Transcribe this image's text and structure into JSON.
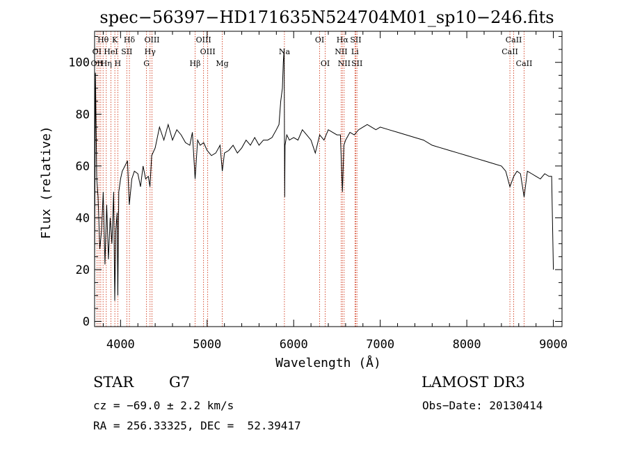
{
  "colors": {
    "background": "#ffffff",
    "axes": "#000000",
    "spectrum": "#000000",
    "line_markers": "#cc2200"
  },
  "chart_data": {
    "type": "line",
    "title": "spec−56397−HD171635N524704M01_sp10−246.fits",
    "xlabel": "Wavelength (Å)",
    "ylabel": "Flux (relative)",
    "xlim": [
      3700,
      9100
    ],
    "ylim": [
      -2,
      112
    ],
    "xticks": [
      4000,
      5000,
      6000,
      7000,
      8000,
      9000
    ],
    "xtick_labels": [
      "4000",
      "5000",
      "6000",
      "7000",
      "8000",
      "9000"
    ],
    "yticks": [
      0,
      20,
      40,
      60,
      80,
      100
    ],
    "ytick_labels": [
      "0",
      "20",
      "40",
      "60",
      "80",
      "100"
    ],
    "grid": false,
    "legend": "none",
    "series": [
      {
        "x": [
          3700,
          3710,
          3725,
          3740,
          3760,
          3780,
          3800,
          3820,
          3840,
          3860,
          3880,
          3900,
          3920,
          3933,
          3945,
          3960,
          3968,
          3980,
          4000,
          4020,
          4050,
          4080,
          4101,
          4130,
          4160,
          4200,
          4230,
          4260,
          4290,
          4320,
          4340,
          4360,
          4400,
          4450,
          4500,
          4550,
          4600,
          4650,
          4700,
          4750,
          4800,
          4830,
          4861,
          4890,
          4920,
          4960,
          5000,
          5050,
          5100,
          5150,
          5175,
          5200,
          5250,
          5300,
          5350,
          5400,
          5450,
          5500,
          5550,
          5600,
          5650,
          5700,
          5750,
          5800,
          5830,
          5850,
          5870,
          5880,
          5890,
          5896,
          5900,
          5920,
          5950,
          6000,
          6050,
          6100,
          6150,
          6200,
          6250,
          6300,
          6350,
          6400,
          6450,
          6500,
          6540,
          6563,
          6580,
          6600,
          6650,
          6700,
          6750,
          6800,
          6850,
          6900,
          6950,
          7000,
          7100,
          7200,
          7300,
          7400,
          7500,
          7600,
          7700,
          7800,
          7900,
          8000,
          8100,
          8200,
          8300,
          8400,
          8450,
          8498,
          8542,
          8580,
          8620,
          8662,
          8700,
          8750,
          8800,
          8850,
          8900,
          8950,
          8980,
          9000
        ],
        "values": [
          20,
          96,
          55,
          48,
          28,
          35,
          50,
          22,
          45,
          24,
          40,
          30,
          50,
          8,
          35,
          42,
          10,
          50,
          55,
          58,
          60,
          62,
          45,
          55,
          58,
          57,
          52,
          60,
          55,
          56,
          52,
          64,
          67,
          75,
          70,
          76,
          70,
          74,
          72,
          69,
          68,
          73,
          55,
          70,
          68,
          69,
          66,
          64,
          65,
          68,
          58,
          65,
          66,
          68,
          65,
          67,
          70,
          68,
          71,
          68,
          70,
          70,
          71,
          74,
          76,
          85,
          90,
          100,
          105,
          48,
          68,
          72,
          70,
          71,
          70,
          74,
          72,
          70,
          65,
          72,
          70,
          74,
          73,
          72,
          72,
          50,
          68,
          70,
          73,
          72,
          74,
          75,
          76,
          75,
          74,
          75,
          74,
          73,
          72,
          71,
          70,
          68,
          67,
          66,
          65,
          64,
          63,
          62,
          61,
          60,
          58,
          52,
          56,
          58,
          57,
          48,
          58,
          57,
          56,
          55,
          57,
          56,
          56,
          20
        ]
      }
    ],
    "line_labels": [
      {
        "text": "Hθ",
        "wavelength": 3798,
        "row": 0
      },
      {
        "text": "K",
        "wavelength": 3934,
        "row": 0
      },
      {
        "text": "Hδ",
        "wavelength": 4102,
        "row": 0
      },
      {
        "text": "OIII",
        "wavelength": 4363,
        "row": 0
      },
      {
        "text": "OIII",
        "wavelength": 4959,
        "row": 0
      },
      {
        "text": "OI",
        "wavelength": 6300,
        "row": 0
      },
      {
        "text": "Hα",
        "wavelength": 6563,
        "row": 0
      },
      {
        "text": "SII",
        "wavelength": 6717,
        "row": 0
      },
      {
        "text": "CaII",
        "wavelength": 8542,
        "row": 0
      },
      {
        "text": "OI",
        "wavelength": 3727,
        "row": 1
      },
      {
        "text": "HeI",
        "wavelength": 3889,
        "row": 1
      },
      {
        "text": "SII",
        "wavelength": 4072,
        "row": 1
      },
      {
        "text": "Hγ",
        "wavelength": 4341,
        "row": 1
      },
      {
        "text": "OIII",
        "wavelength": 5007,
        "row": 1
      },
      {
        "text": "Na",
        "wavelength": 5893,
        "row": 1
      },
      {
        "text": "NII",
        "wavelength": 6548,
        "row": 1
      },
      {
        "text": "Li",
        "wavelength": 6708,
        "row": 1
      },
      {
        "text": "CaII",
        "wavelength": 8498,
        "row": 1
      },
      {
        "text": "OII",
        "wavelength": 3727,
        "row": 2
      },
      {
        "text": "Hη",
        "wavelength": 3835,
        "row": 2
      },
      {
        "text": "H",
        "wavelength": 3968,
        "row": 2
      },
      {
        "text": "G",
        "wavelength": 4300,
        "row": 2
      },
      {
        "text": "Hβ",
        "wavelength": 4861,
        "row": 2
      },
      {
        "text": "Mg",
        "wavelength": 5175,
        "row": 2
      },
      {
        "text": "OI",
        "wavelength": 6364,
        "row": 2
      },
      {
        "text": "NII",
        "wavelength": 6583,
        "row": 2
      },
      {
        "text": "SII",
        "wavelength": 6731,
        "row": 2
      },
      {
        "text": "CaII",
        "wavelength": 8662,
        "row": 2
      }
    ],
    "marker_lines": [
      3727,
      3750,
      3771,
      3798,
      3835,
      3889,
      3934,
      3968,
      4072,
      4102,
      4300,
      4341,
      4363,
      4861,
      4959,
      5007,
      5175,
      5893,
      6300,
      6364,
      6548,
      6563,
      6583,
      6708,
      6717,
      6731,
      8498,
      8542,
      8662
    ]
  },
  "info": {
    "object_class": "STAR",
    "subclass": "G7",
    "survey": "LAMOST DR3",
    "redshift_line": "cz = −69.0 ± 2.2 km/s",
    "obs_date": "Obs−Date: 20130414",
    "coords": "RA = 256.33325, DEC =  52.39417"
  }
}
